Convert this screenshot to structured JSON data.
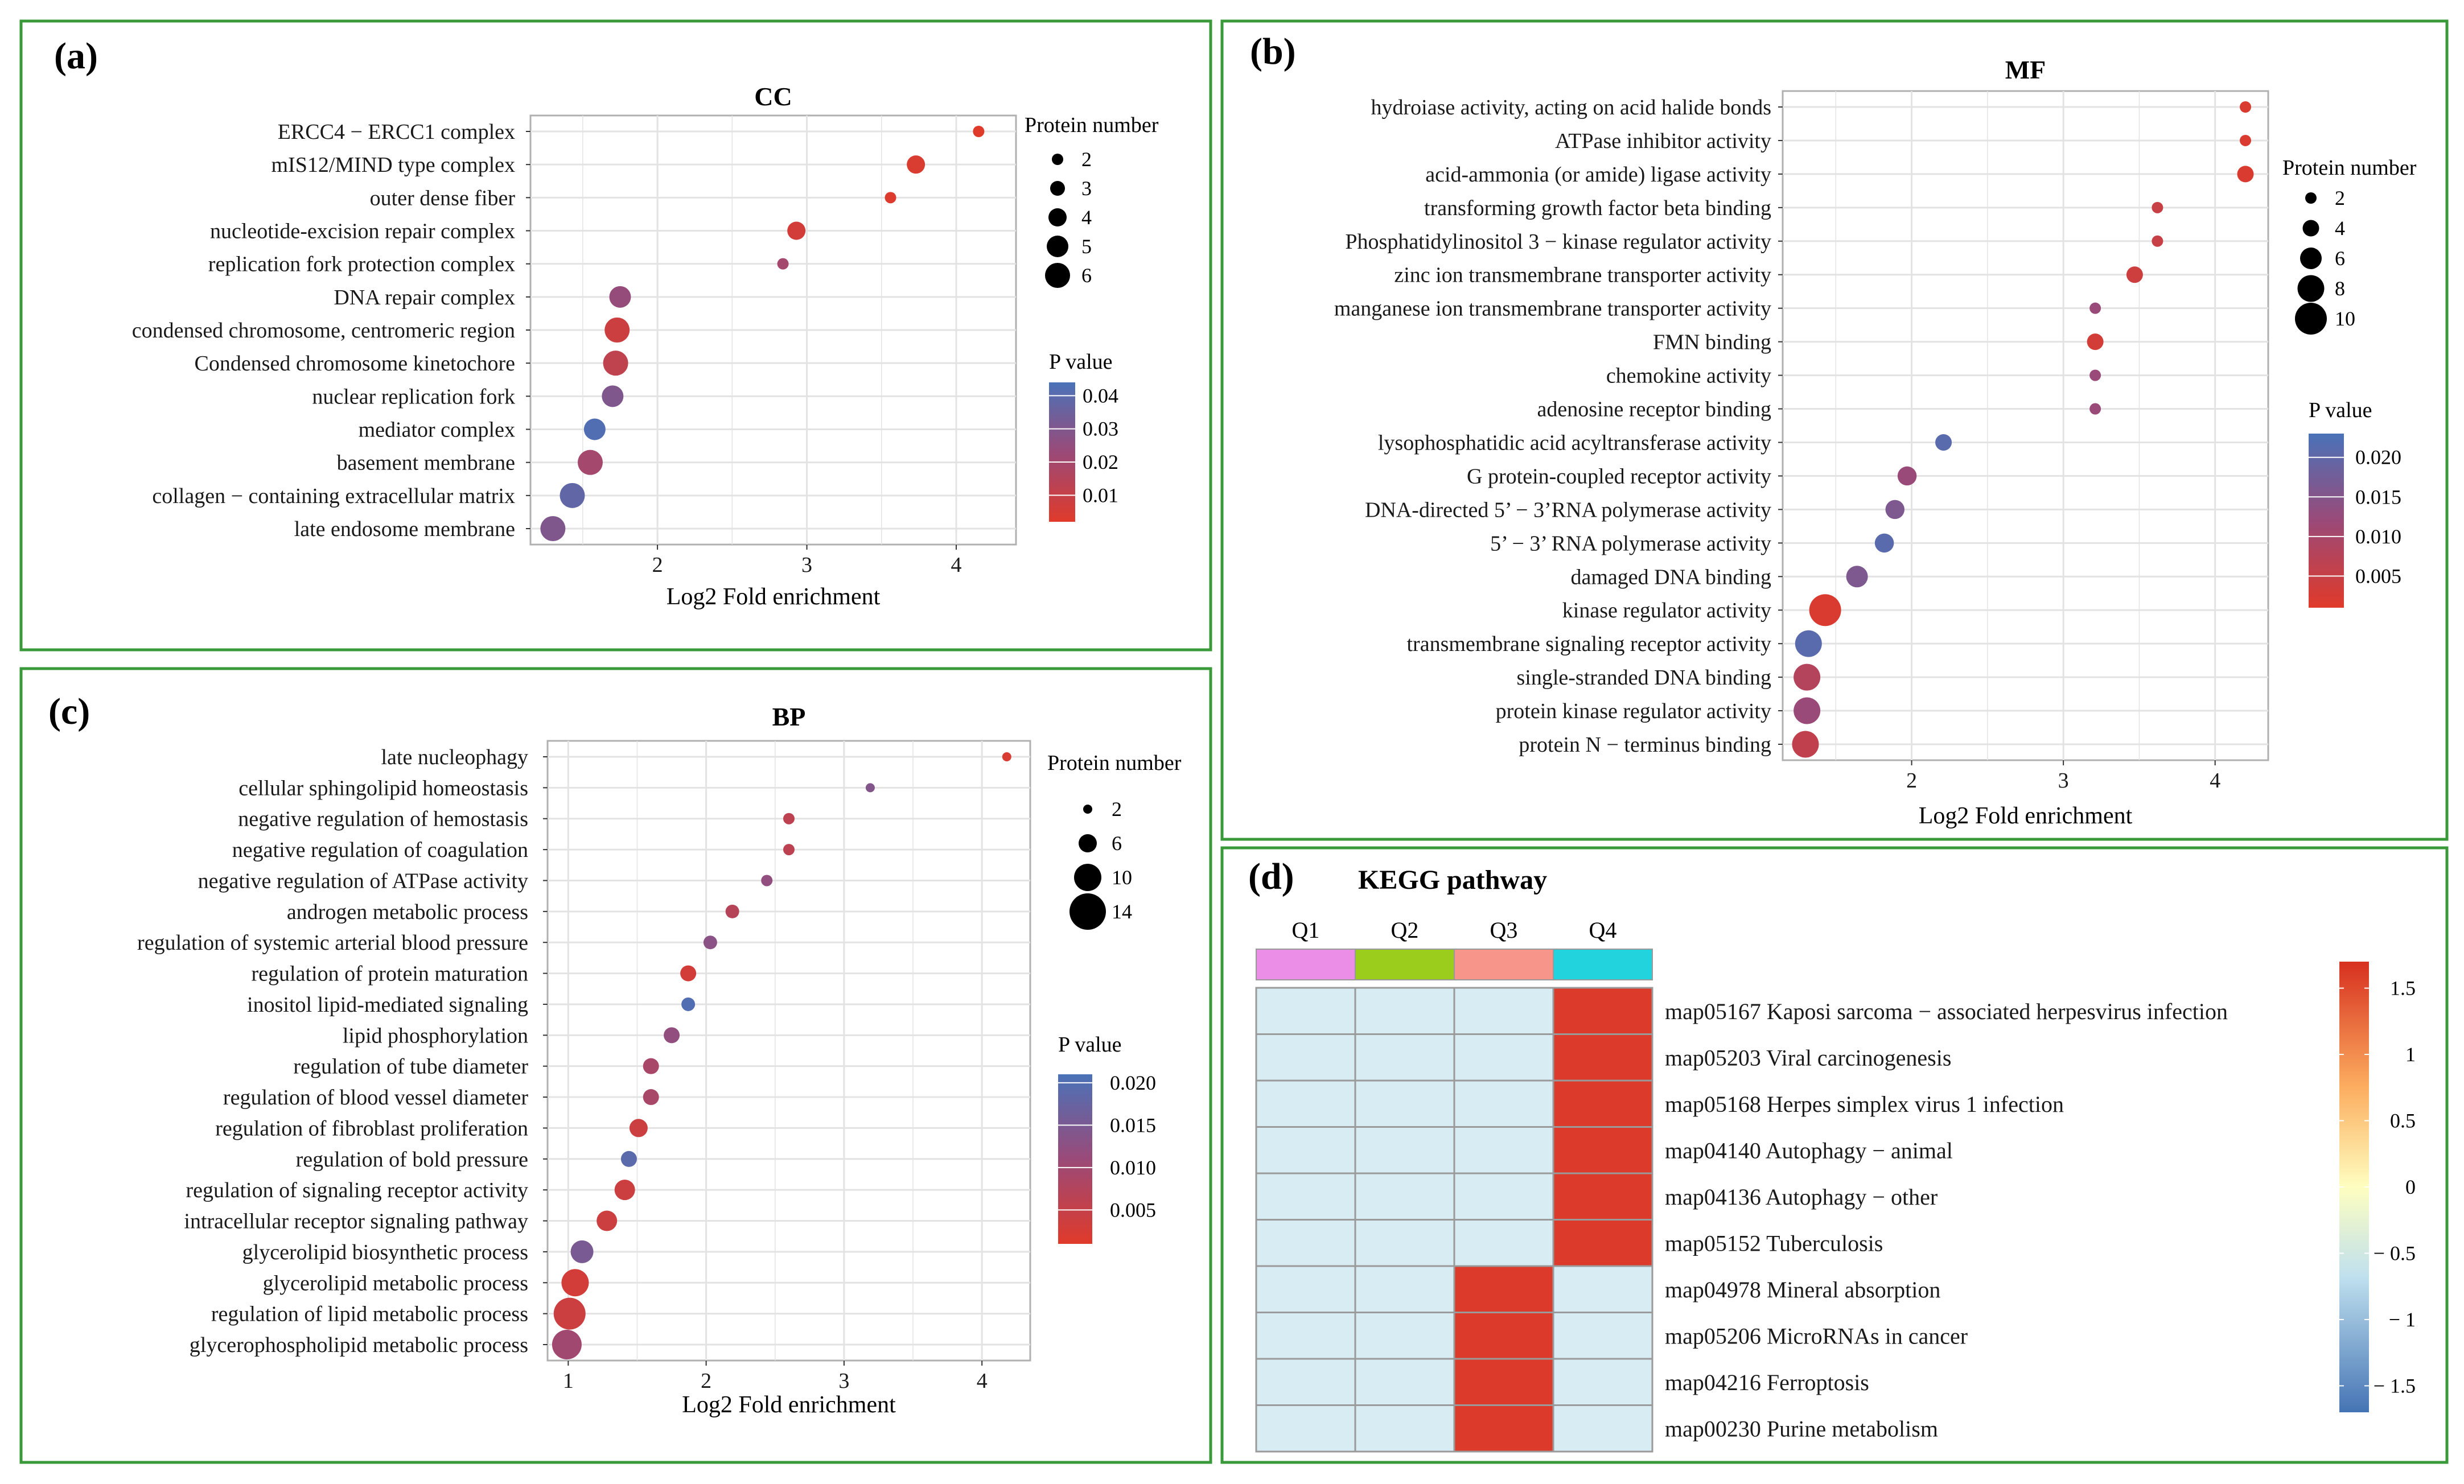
{
  "panels": {
    "a": {
      "letter": "(a)"
    },
    "b": {
      "letter": "(b)"
    },
    "c": {
      "letter": "(c)"
    },
    "d": {
      "letter": "(d)"
    }
  },
  "colors": {
    "panel_border": "#3a9a3a",
    "low_p": "#e03a2a",
    "mid_p": "#9a4a78",
    "high_p": "#4a72b8",
    "grid": "#e3e3e3",
    "heat_low": "#d8ecf3",
    "heat_high": "#dc3a2a",
    "q1": "#ea8ee8",
    "q2": "#9acd1c",
    "q3": "#f8958a",
    "q4": "#22d2dc"
  },
  "chart_data": [
    {
      "id": "cc",
      "type": "scatter",
      "title": "CC",
      "xlabel": "Log2 Fold enrichment",
      "xlim": [
        1.15,
        4.4
      ],
      "xticks": [
        2,
        3,
        4
      ],
      "size_legend_title": "Protein number",
      "size_range": [
        2,
        6
      ],
      "size_legend": [
        2,
        3,
        4,
        5,
        6
      ],
      "p_legend_title": "P value",
      "p_range": [
        0.002,
        0.044
      ],
      "p_legend": [
        "0.04",
        "0.03",
        "0.02",
        "0.01"
      ],
      "p_legend_values": [
        0.04,
        0.03,
        0.02,
        0.01
      ],
      "terms": [
        {
          "label": "ERCC4 − ERCC1 complex",
          "x": 4.15,
          "count": 2,
          "p": 0.002
        },
        {
          "label": "mIS12/MIND type complex",
          "x": 3.73,
          "count": 4,
          "p": 0.004
        },
        {
          "label": "outer dense fiber",
          "x": 3.56,
          "count": 2,
          "p": 0.003
        },
        {
          "label": "nucleotide-excision repair complex",
          "x": 2.93,
          "count": 4,
          "p": 0.006
        },
        {
          "label": "replication fork protection complex",
          "x": 2.84,
          "count": 2,
          "p": 0.02
        },
        {
          "label": "DNA repair complex",
          "x": 1.75,
          "count": 5,
          "p": 0.024
        },
        {
          "label": "condensed chromosome, centromeric region",
          "x": 1.73,
          "count": 6,
          "p": 0.008
        },
        {
          "label": "Condensed chromosome kinetochore",
          "x": 1.72,
          "count": 6,
          "p": 0.012
        },
        {
          "label": "nuclear replication fork",
          "x": 1.7,
          "count": 5,
          "p": 0.03
        },
        {
          "label": "mediator complex",
          "x": 1.58,
          "count": 5,
          "p": 0.042
        },
        {
          "label": "basement membrane",
          "x": 1.55,
          "count": 6,
          "p": 0.02
        },
        {
          "label": "collagen − containing extracellular matrix",
          "x": 1.43,
          "count": 6,
          "p": 0.038
        },
        {
          "label": "late endosome membrane",
          "x": 1.3,
          "count": 6,
          "p": 0.03
        }
      ]
    },
    {
      "id": "mf",
      "type": "scatter",
      "title": "MF",
      "xlabel": "Log2 Fold enrichment",
      "xlim": [
        1.15,
        4.35
      ],
      "xticks": [
        2,
        3,
        4
      ],
      "size_legend_title": "Protein number",
      "size_range": [
        2,
        10
      ],
      "size_legend": [
        2,
        4,
        6,
        8,
        10
      ],
      "p_legend_title": "P value",
      "p_range": [
        0.001,
        0.023
      ],
      "p_legend": [
        "0.020",
        "0.015",
        "0.010",
        "0.005"
      ],
      "p_legend_values": [
        0.02,
        0.015,
        0.01,
        0.005
      ],
      "terms": [
        {
          "label": "hydroiase activity, acting on acid halide bonds",
          "x": 4.2,
          "count": 2,
          "p": 0.002
        },
        {
          "label": "ATPase inhibitor activity",
          "x": 4.2,
          "count": 2,
          "p": 0.002
        },
        {
          "label": "acid-ammonia (or amide) ligase activity",
          "x": 4.2,
          "count": 4,
          "p": 0.002
        },
        {
          "label": "transforming growth factor beta binding",
          "x": 3.62,
          "count": 2,
          "p": 0.005
        },
        {
          "label": "Phosphatidylinositol 3 − kinase regulator activity",
          "x": 3.62,
          "count": 2,
          "p": 0.005
        },
        {
          "label": "zinc ion transmembrane transporter activity",
          "x": 3.47,
          "count": 4,
          "p": 0.004
        },
        {
          "label": "manganese ion transmembrane transporter activity",
          "x": 3.21,
          "count": 2,
          "p": 0.012
        },
        {
          "label": "FMN binding",
          "x": 3.21,
          "count": 4,
          "p": 0.003
        },
        {
          "label": "chemokine activity",
          "x": 3.21,
          "count": 2,
          "p": 0.012
        },
        {
          "label": "adenosine receptor binding",
          "x": 3.21,
          "count": 2,
          "p": 0.012
        },
        {
          "label": "lysophosphatidic acid acyltransferase activity",
          "x": 2.21,
          "count": 4,
          "p": 0.021
        },
        {
          "label": "G protein-coupled receptor activity",
          "x": 1.97,
          "count": 5,
          "p": 0.012
        },
        {
          "label": "DNA-directed 5’ − 3’RNA polymerase activity",
          "x": 1.89,
          "count": 5,
          "p": 0.016
        },
        {
          "label": "5’ − 3’ RNA polymerase activity",
          "x": 1.82,
          "count": 5,
          "p": 0.021
        },
        {
          "label": "damaged DNA binding",
          "x": 1.64,
          "count": 6,
          "p": 0.016
        },
        {
          "label": "kinase regulator activity",
          "x": 1.43,
          "count": 10,
          "p": 0.002
        },
        {
          "label": "transmembrane signaling receptor activity",
          "x": 1.32,
          "count": 8,
          "p": 0.021
        },
        {
          "label": "single-stranded DNA binding",
          "x": 1.31,
          "count": 8,
          "p": 0.008
        },
        {
          "label": "protein kinase regulator activity",
          "x": 1.31,
          "count": 8,
          "p": 0.012
        },
        {
          "label": "protein N − terminus binding",
          "x": 1.3,
          "count": 8,
          "p": 0.006
        }
      ]
    },
    {
      "id": "bp",
      "type": "scatter",
      "title": "BP",
      "xlabel": "Log2 Fold enrichment",
      "xlim": [
        0.85,
        4.35
      ],
      "xticks": [
        1,
        2,
        3,
        4
      ],
      "size_legend_title": "Protein number",
      "size_range": [
        2,
        14
      ],
      "size_legend": [
        2,
        6,
        10,
        14
      ],
      "p_legend_title": "P value",
      "p_range": [
        0.001,
        0.021
      ],
      "p_legend": [
        "0.020",
        "0.015",
        "0.010",
        "0.005"
      ],
      "p_legend_values": [
        0.02,
        0.015,
        0.01,
        0.005
      ],
      "terms": [
        {
          "label": "late nucleophagy",
          "x": 4.18,
          "count": 2,
          "p": 0.002
        },
        {
          "label": "cellular sphingolipid homeostasis",
          "x": 3.19,
          "count": 2,
          "p": 0.014
        },
        {
          "label": "negative regulation of hemostasis",
          "x": 2.6,
          "count": 3,
          "p": 0.006
        },
        {
          "label": "negative regulation of coagulation",
          "x": 2.6,
          "count": 3,
          "p": 0.006
        },
        {
          "label": "negative regulation of ATPase activity",
          "x": 2.44,
          "count": 3,
          "p": 0.012
        },
        {
          "label": "androgen metabolic process",
          "x": 2.19,
          "count": 4,
          "p": 0.007
        },
        {
          "label": "regulation of systemic arterial blood pressure",
          "x": 2.03,
          "count": 4,
          "p": 0.013
        },
        {
          "label": "regulation of protein maturation",
          "x": 1.87,
          "count": 5,
          "p": 0.003
        },
        {
          "label": "inositol lipid-mediated signaling",
          "x": 1.87,
          "count": 4,
          "p": 0.02
        },
        {
          "label": "lipid phosphorylation",
          "x": 1.75,
          "count": 5,
          "p": 0.012
        },
        {
          "label": "regulation of tube diameter",
          "x": 1.6,
          "count": 5,
          "p": 0.009
        },
        {
          "label": "regulation of blood vessel diameter",
          "x": 1.6,
          "count": 5,
          "p": 0.009
        },
        {
          "label": "regulation of fibroblast proliferation",
          "x": 1.51,
          "count": 6,
          "p": 0.004
        },
        {
          "label": "regulation of bold pressure",
          "x": 1.44,
          "count": 5,
          "p": 0.019
        },
        {
          "label": "regulation of signaling receptor activity",
          "x": 1.41,
          "count": 7,
          "p": 0.004
        },
        {
          "label": "intracellular receptor signaling pathway",
          "x": 1.28,
          "count": 7,
          "p": 0.004
        },
        {
          "label": "glycerolipid biosynthetic process",
          "x": 1.1,
          "count": 8,
          "p": 0.015
        },
        {
          "label": "glycerolipid metabolic process",
          "x": 1.05,
          "count": 10,
          "p": 0.003
        },
        {
          "label": "regulation of lipid metabolic process",
          "x": 1.01,
          "count": 12,
          "p": 0.004
        },
        {
          "label": "glycerophospholipid metabolic process",
          "x": 0.99,
          "count": 11,
          "p": 0.01
        }
      ]
    },
    {
      "id": "kegg",
      "type": "heatmap",
      "title": "KEGG pathway",
      "columns": [
        "Q1",
        "Q2",
        "Q3",
        "Q4"
      ],
      "rows": [
        "map05167 Kaposi sarcoma − associated herpesvirus infection",
        "map05203 Viral carcinogenesis",
        "map05168 Herpes simplex virus 1 infection",
        "map04140 Autophagy − animal",
        "map04136 Autophagy − other",
        "map05152 Tuberculosis",
        "map04978 Mineral absorption",
        "map05206 MicroRNAs in cancer",
        "map04216 Ferroptosis",
        "map00230 Purine metabolism"
      ],
      "values": [
        [
          -0.5,
          -0.5,
          -0.5,
          1.5
        ],
        [
          -0.5,
          -0.5,
          -0.5,
          1.5
        ],
        [
          -0.5,
          -0.5,
          -0.5,
          1.5
        ],
        [
          -0.5,
          -0.5,
          -0.5,
          1.5
        ],
        [
          -0.5,
          -0.5,
          -0.5,
          1.5
        ],
        [
          -0.5,
          -0.5,
          -0.5,
          1.5
        ],
        [
          -0.5,
          -0.5,
          1.5,
          -0.5
        ],
        [
          -0.5,
          -0.5,
          1.5,
          -0.5
        ],
        [
          -0.5,
          -0.5,
          1.5,
          -0.5
        ],
        [
          -0.5,
          -0.5,
          1.5,
          -0.5
        ]
      ],
      "scale_range": [
        -1.7,
        1.7
      ],
      "scale_ticks": [
        1.5,
        1,
        0.5,
        0,
        -0.5,
        -1,
        -1.5
      ],
      "scale_labels": [
        "1.5",
        "1",
        "0.5",
        "0",
        "− 0.5",
        "− 1",
        "− 1.5"
      ]
    }
  ]
}
